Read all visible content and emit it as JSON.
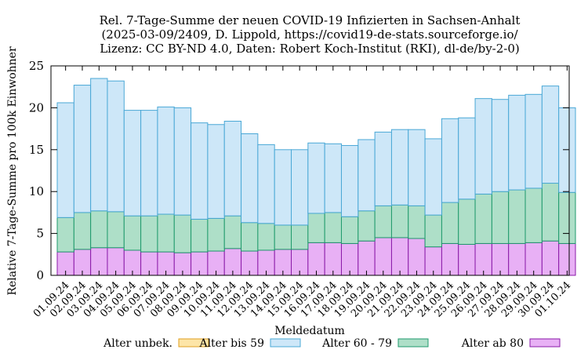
{
  "chart_data": {
    "type": "bar",
    "stacked": true,
    "title_lines": [
      "Rel. 7-Tage-Summe der neuen COVID-19 Infizierten in Sachsen-Anhalt",
      "(2025-03-09/2409, D. Lippold, https://covid19-de-stats.sourceforge.io/",
      "Lizenz: CC BY-ND 4.0, Daten: Robert Koch-Institut (RKI), dl-de/by-2-0)"
    ],
    "xlabel": "Meldedatum",
    "ylabel": "Relative 7-Tage-Summe pro 100k Einwohner",
    "ylim": [
      0,
      25
    ],
    "yticks": [
      0,
      5,
      10,
      15,
      20,
      25
    ],
    "categories": [
      "01.09.24",
      "02.09.24",
      "03.09.24",
      "04.09.24",
      "05.09.24",
      "06.09.24",
      "07.09.24",
      "08.09.24",
      "09.09.24",
      "10.09.24",
      "11.09.24",
      "12.09.24",
      "13.09.24",
      "14.09.24",
      "15.09.24",
      "16.09.24",
      "17.09.24",
      "18.09.24",
      "19.09.24",
      "20.09.24",
      "21.09.24",
      "22.09.24",
      "23.09.24",
      "24.09.24",
      "25.09.24",
      "26.09.24",
      "27.09.24",
      "28.09.24",
      "29.09.24",
      "30.09.24",
      "01.10.24"
    ],
    "series": [
      {
        "name": "Alter unbek.",
        "fill": "#fde5a7",
        "stroke": "#e0a020",
        "values": [
          0,
          0,
          0,
          0,
          0,
          0,
          0,
          0,
          0,
          0,
          0,
          0,
          0,
          0,
          0,
          0,
          0,
          0,
          0,
          0,
          0,
          0,
          0,
          0,
          0,
          0,
          0,
          0,
          0,
          0,
          0
        ]
      },
      {
        "name": "Alter ab 80",
        "fill": "#e8b0f5",
        "stroke": "#8a1aa8",
        "values": [
          2.8,
          3.1,
          3.3,
          3.3,
          3.0,
          2.8,
          2.8,
          2.7,
          2.8,
          2.9,
          3.2,
          2.9,
          3.0,
          3.1,
          3.1,
          3.9,
          3.9,
          3.8,
          4.1,
          4.5,
          4.5,
          4.4,
          3.4,
          3.8,
          3.7,
          3.8,
          3.8,
          3.8,
          3.9,
          4.1,
          3.8
        ]
      },
      {
        "name": "Alter 60 - 79",
        "fill": "#aedfc8",
        "stroke": "#1f9a6c",
        "values": [
          4.1,
          4.4,
          4.4,
          4.3,
          4.1,
          4.3,
          4.5,
          4.5,
          3.9,
          3.9,
          3.9,
          3.4,
          3.2,
          2.9,
          2.9,
          3.5,
          3.6,
          3.2,
          3.6,
          3.8,
          3.9,
          3.9,
          3.8,
          4.9,
          5.4,
          5.9,
          6.2,
          6.4,
          6.5,
          6.9,
          6.1
        ]
      },
      {
        "name": "Alter bis 59",
        "fill": "#cde7f8",
        "stroke": "#4aa8d6",
        "values": [
          13.7,
          15.2,
          15.8,
          15.6,
          12.6,
          12.6,
          12.8,
          12.8,
          11.5,
          11.2,
          11.3,
          10.6,
          9.4,
          9.0,
          9.0,
          8.4,
          8.2,
          8.5,
          8.5,
          8.8,
          9.0,
          9.1,
          9.1,
          10.0,
          9.7,
          11.4,
          11.0,
          11.3,
          11.2,
          11.6,
          10.1
        ]
      }
    ],
    "legend": {
      "position": "bottom",
      "entries": [
        {
          "label": "Alter unbek.",
          "fill": "#fde5a7",
          "stroke": "#e0a020"
        },
        {
          "label": "Alter bis 59",
          "fill": "#cde7f8",
          "stroke": "#4aa8d6"
        },
        {
          "label": "Alter 60 - 79",
          "fill": "#aedfc8",
          "stroke": "#1f9a6c"
        },
        {
          "label": "Alter ab 80",
          "fill": "#e8b0f5",
          "stroke": "#8a1aa8"
        }
      ]
    }
  }
}
